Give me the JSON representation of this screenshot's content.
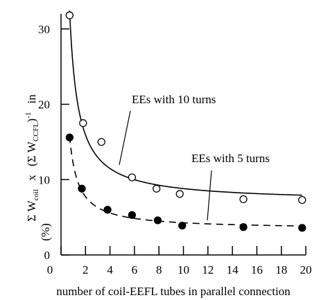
{
  "chart_data": {
    "type": "scatter",
    "xlabel": "number of coil-EEFL tubes in parallel connection",
    "ylabel_parts": {
      "sigma1": "Σ",
      "w1": "W",
      "sub1": "coil",
      "times": "x",
      "paren_open": "(",
      "sigma2": "Σ",
      "w2": "W",
      "sub2": "CCFL",
      "paren_close": ")",
      "sup": "-1",
      "in": "in",
      "unit": "(%)"
    },
    "xlim": [
      0,
      20
    ],
    "ylim": [
      0,
      32
    ],
    "x_ticks": [
      0,
      2,
      4,
      6,
      8,
      10,
      12,
      14,
      16,
      18,
      20
    ],
    "y_ticks": [
      0,
      10,
      20,
      30
    ],
    "series": [
      {
        "name": "EEs with 10 turns",
        "marker": "open-circle",
        "line": "solid",
        "x": [
          0.7,
          1.8,
          3.3,
          5.8,
          7.8,
          9.7,
          14.9,
          19.7
        ],
        "y": [
          31.8,
          17.5,
          15.0,
          10.3,
          8.8,
          8.1,
          7.4,
          7.3
        ]
      },
      {
        "name": "EEs with 5 turns",
        "marker": "filled-circle",
        "line": "dashed",
        "x": [
          0.7,
          1.7,
          3.8,
          5.8,
          7.9,
          9.9,
          14.9,
          19.7
        ],
        "y": [
          15.6,
          8.8,
          6.0,
          5.3,
          4.6,
          3.9,
          3.7,
          3.6
        ]
      }
    ],
    "annotations": [
      {
        "text": "EEs with 10 turns"
      },
      {
        "text": "EEs with 5 turns"
      }
    ]
  }
}
